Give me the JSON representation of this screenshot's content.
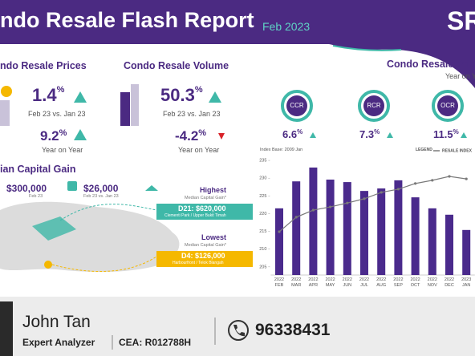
{
  "header": {
    "title": "ndo Resale Flash Report",
    "date": "Feb 2023",
    "logo": "SR"
  },
  "prices": {
    "title": "ndo Resale Prices",
    "change": 1.4,
    "unit": "%",
    "change_label": "Feb 23 vs. Jan 23",
    "yoy": 9.2,
    "yoy_unit": "%",
    "yoy_label": "Year on Year"
  },
  "volume": {
    "title": "Condo Resale Volume",
    "change": 50.3,
    "unit": "%",
    "change_label": "Feb 23 vs. Jan 23",
    "yoy": -4.2,
    "yoy_unit": "%",
    "yoy_label": "Year on Year"
  },
  "regions": {
    "title": "Condo Resale Pric",
    "subtitle": "Year on Y",
    "items": [
      {
        "label": "CCR",
        "value": 6.6,
        "unit": "%"
      },
      {
        "label": "RCR",
        "value": 7.3,
        "unit": "%"
      },
      {
        "label": "OCR",
        "value": 11.5,
        "unit": "%"
      }
    ]
  },
  "capital_gain": {
    "title": "ian Capital Gain",
    "median": "$300,000",
    "median_label": "Feb 23",
    "change": "$26,000",
    "change_label": "Feb 23 vs. Jan 23",
    "highest": {
      "title": "Highest",
      "subtitle": "Median Capital Gain*",
      "value": "D21: $620,000",
      "area": "Clementi Park / Upper Bukit Timah"
    },
    "lowest": {
      "title": "Lowest",
      "subtitle": "Median Capital Gain*",
      "value": "D4: $126,000",
      "area": "Harbourfront / Telok Blangah"
    }
  },
  "chart_data": {
    "type": "bar",
    "subtitle": "Index Base: 2009 Jan",
    "legend_title": "LEGEND",
    "categories": [
      "2022\nFEB",
      "2022\nMAR",
      "2022\nAPR",
      "2022\nMAY",
      "2022\nJUN",
      "2022\nJUL",
      "2022\nAUG",
      "2022\nSEP",
      "2022\nOCT",
      "2022\nNOV",
      "2022\nDEC",
      "2023\nJAN"
    ],
    "series": [
      {
        "type": "bar",
        "color": "#4a2a8c",
        "values": [
          221.5,
          229.1,
          233,
          229.6,
          228.9,
          226.4,
          227.1,
          229.4,
          224.6,
          221.5,
          219.7,
          215.4
        ]
      },
      {
        "type": "line",
        "name": "RESALE INDEX",
        "color": "#7a7a7a",
        "values": [
          214.9,
          219,
          221,
          221.9,
          223,
          224.2,
          226,
          226.9,
          228.5,
          229.4,
          230.5,
          229.8
        ]
      }
    ],
    "ylim": [
      202.7,
      235.7
    ],
    "yticks": [
      205,
      210,
      215,
      220,
      225,
      230,
      235
    ],
    "grid": false
  },
  "agent": {
    "name": "John Tan",
    "role": "Expert Analyzer",
    "cea": "CEA: R012788H",
    "phone": "96338431"
  }
}
